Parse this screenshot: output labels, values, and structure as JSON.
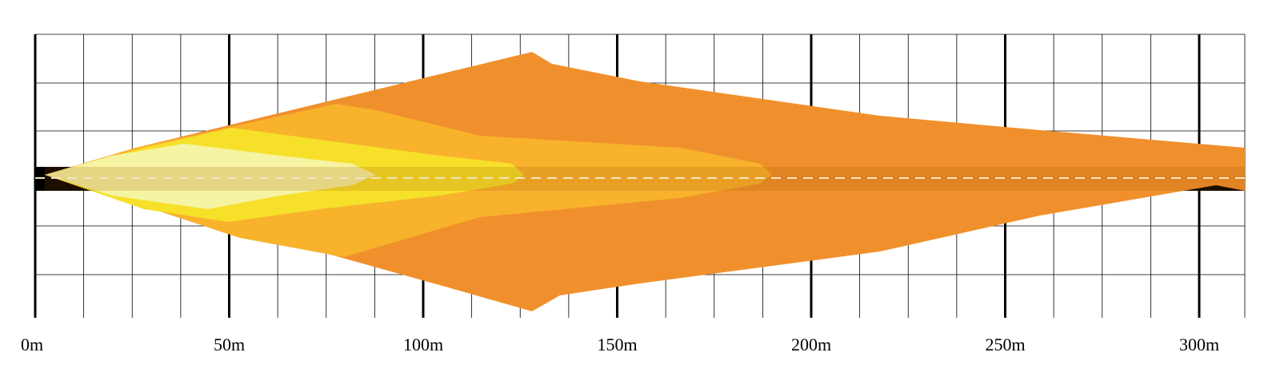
{
  "diagram": {
    "type": "light beam pattern",
    "x_axis": {
      "ticks": [
        {
          "value": 0,
          "label": "0m"
        },
        {
          "value": 50,
          "label": "50m"
        },
        {
          "value": 100,
          "label": "100m"
        },
        {
          "value": 150,
          "label": "150m"
        },
        {
          "value": 200,
          "label": "200m"
        },
        {
          "value": 250,
          "label": "250m"
        },
        {
          "value": 300,
          "label": "300m"
        }
      ],
      "minor_step": 12.5,
      "unit": "m"
    },
    "grid": true,
    "centerline": "dashed",
    "colors": {
      "outer_zone": "#f0902c",
      "second_zone": "#f8b22c",
      "third_zone": "#f6e02a",
      "inner_zone": "#f5f4a2",
      "center_band": "#000000",
      "grid": "#000000",
      "background": "#ffffff"
    }
  }
}
